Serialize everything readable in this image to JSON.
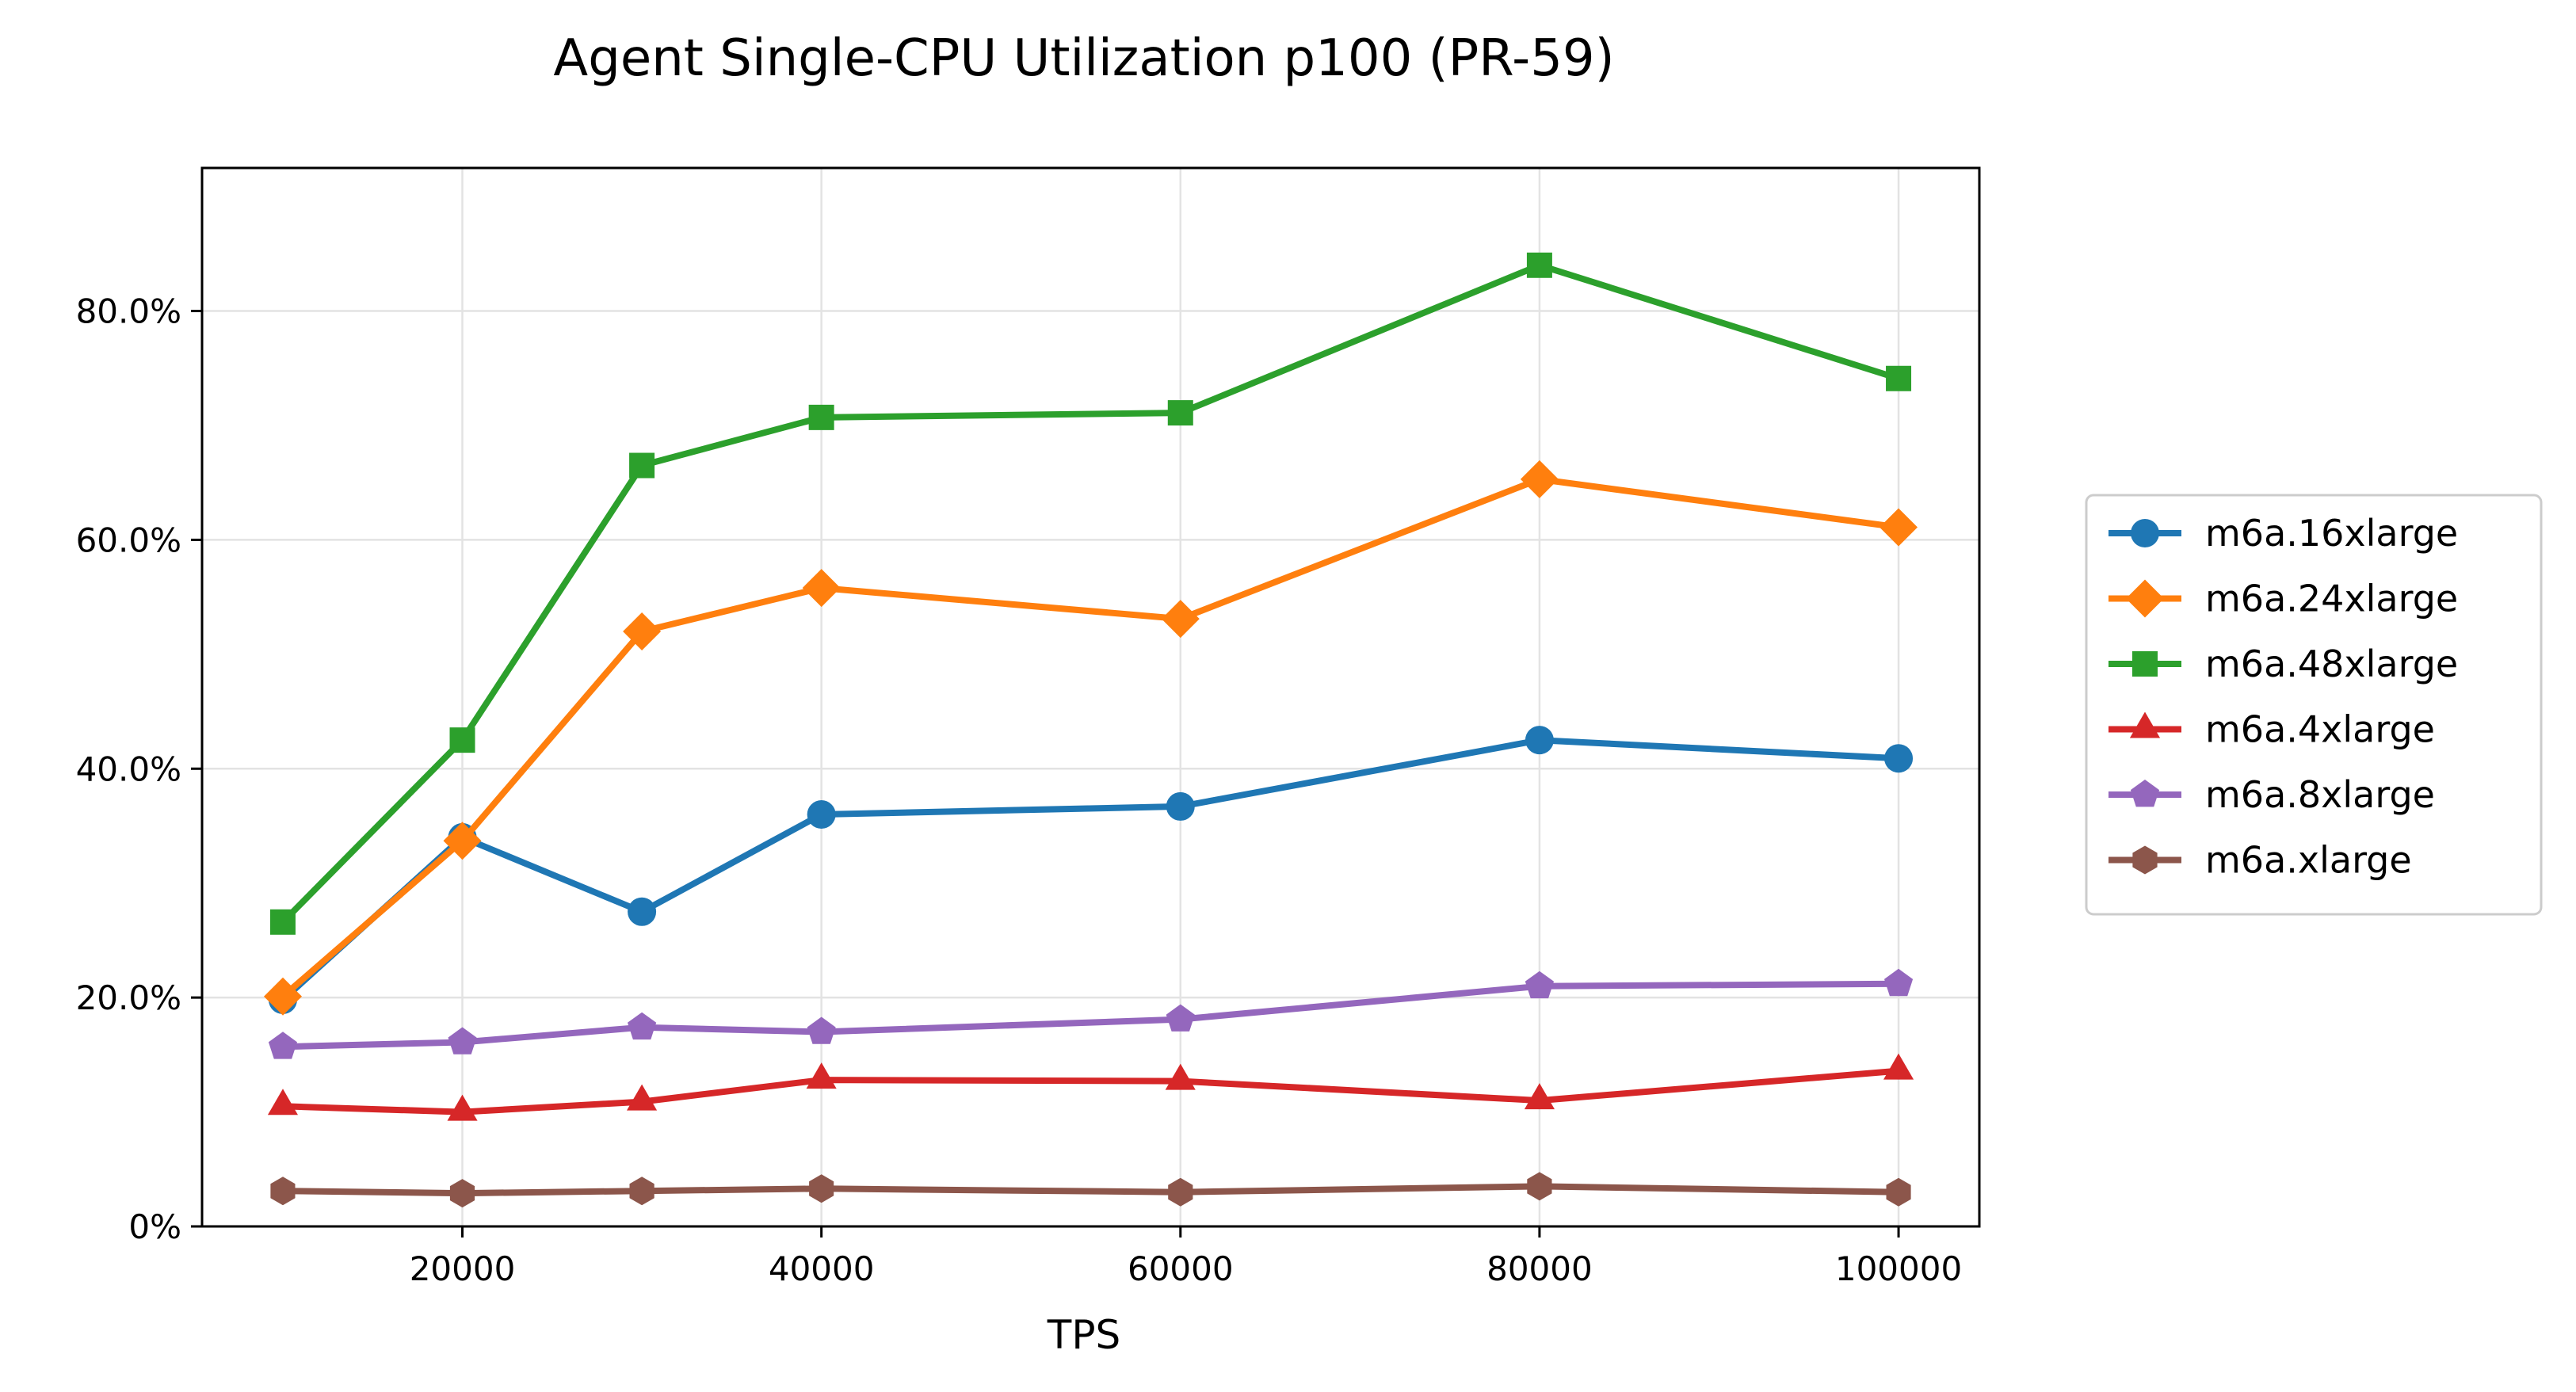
{
  "chart_data": {
    "type": "line",
    "title": "Agent Single-CPU Utilization p100 (PR-59)",
    "xlabel": "TPS",
    "ylabel": "",
    "x": [
      10000,
      20000,
      30000,
      40000,
      60000,
      80000,
      100000
    ],
    "xlim": [
      5500,
      104500
    ],
    "ylim": [
      0,
      0.925
    ],
    "xticks": [
      20000,
      40000,
      60000,
      80000,
      100000
    ],
    "xtick_labels": [
      "20000",
      "40000",
      "60000",
      "80000",
      "100000"
    ],
    "yticks": [
      0,
      0.2,
      0.4,
      0.6,
      0.8
    ],
    "ytick_labels": [
      "0%",
      "20.0%",
      "40.0%",
      "60.0%",
      "80.0%"
    ],
    "grid": true,
    "legend_position": "right, outside plot",
    "series": [
      {
        "name": "m6a.16xlarge",
        "color": "#1f77b4",
        "marker": "circle",
        "values": [
          0.198,
          0.34,
          0.275,
          0.36,
          0.367,
          0.425,
          0.409
        ]
      },
      {
        "name": "m6a.24xlarge",
        "color": "#ff7f0e",
        "marker": "diamond",
        "values": [
          0.201,
          0.337,
          0.52,
          0.558,
          0.531,
          0.653,
          0.611
        ]
      },
      {
        "name": "m6a.48xlarge",
        "color": "#2ca02c",
        "marker": "square",
        "values": [
          0.266,
          0.425,
          0.665,
          0.707,
          0.711,
          0.84,
          0.741
        ]
      },
      {
        "name": "m6a.4xlarge",
        "color": "#d62728",
        "marker": "triangle",
        "values": [
          0.105,
          0.1,
          0.109,
          0.128,
          0.127,
          0.11,
          0.136
        ]
      },
      {
        "name": "m6a.8xlarge",
        "color": "#9467bd",
        "marker": "pentagon",
        "values": [
          0.157,
          0.161,
          0.174,
          0.17,
          0.181,
          0.21,
          0.212
        ]
      },
      {
        "name": "m6a.xlarge",
        "color": "#8c564b",
        "marker": "hexagon",
        "values": [
          0.031,
          0.029,
          0.031,
          0.033,
          0.03,
          0.035,
          0.03
        ]
      }
    ]
  }
}
